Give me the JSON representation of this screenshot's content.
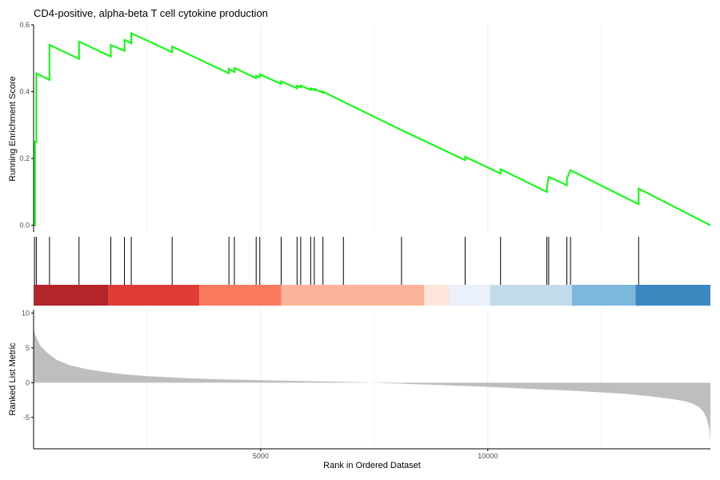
{
  "chart_data": {
    "type": "line",
    "title": "CD4-positive, alpha-beta T cell cytokine production",
    "xlabel": "Rank in Ordered Dataset",
    "xlim": [
      0,
      14900
    ],
    "x_ticks": [
      5000,
      10000
    ],
    "grid": true,
    "colors": {
      "es_line": "#00ff00",
      "hit_line": "#000000",
      "metric_fill": "#bebebe",
      "axis": "#000000",
      "grid": "#ebebeb"
    },
    "panels": {
      "enrichment": {
        "ylabel": "Running Enrichment Score",
        "ylim": [
          -0.02,
          0.6
        ],
        "y_ticks": [
          0.0,
          0.2,
          0.4,
          0.6
        ],
        "y_tick_labels": [
          "0.0",
          "0.2",
          "0.4",
          "0.6"
        ],
        "series": [
          {
            "x": [
              0,
              30,
              30,
              60,
              60,
              350,
              350,
              1000,
              1000,
              1700,
              1700,
              2000,
              2000,
              2150,
              2150,
              3050,
              3050,
              4300,
              4300,
              4420,
              4420,
              4900,
              4900,
              4980,
              4980,
              5450,
              5450,
              5800,
              5800,
              5880,
              5880,
              6100,
              6100,
              6180,
              6180,
              6370,
              6370,
              6820,
              6820,
              8100,
              8100,
              9500,
              9500,
              10280,
              10280,
              11300,
              11300,
              11340,
              11340,
              11740,
              11740,
              11820,
              11820,
              13320,
              13320,
              14900
            ],
            "y": [
              0.0,
              0.0,
              0.25,
              0.25,
              0.455,
              0.435,
              0.54,
              0.498,
              0.55,
              0.505,
              0.54,
              0.522,
              0.555,
              0.545,
              0.575,
              0.518,
              0.535,
              0.455,
              0.468,
              0.459,
              0.471,
              0.44,
              0.448,
              0.443,
              0.452,
              0.423,
              0.431,
              0.41,
              0.418,
              0.413,
              0.418,
              0.405,
              0.41,
              0.405,
              0.408,
              0.397,
              0.4,
              0.37,
              0.37,
              0.285,
              0.285,
              0.195,
              0.205,
              0.155,
              0.168,
              0.1,
              0.112,
              0.145,
              0.145,
              0.12,
              0.14,
              0.165,
              0.165,
              0.063,
              0.11,
              0.0
            ]
          }
        ]
      },
      "hits": {
        "positions": [
          20,
          60,
          350,
          1000,
          1700,
          2000,
          2150,
          3050,
          4300,
          4420,
          4900,
          4980,
          5450,
          5800,
          5880,
          6100,
          6180,
          6370,
          6820,
          8100,
          9500,
          10280,
          11300,
          11340,
          11740,
          11820,
          13320
        ]
      },
      "color_bar": {
        "segments": [
          {
            "from": 0,
            "to": 1650,
            "color": "#b2252b"
          },
          {
            "from": 1650,
            "to": 3650,
            "color": "#e03c36"
          },
          {
            "from": 3650,
            "to": 5450,
            "color": "#fa7a5f"
          },
          {
            "from": 5450,
            "to": 8600,
            "color": "#fdb39b"
          },
          {
            "from": 8600,
            "to": 9150,
            "color": "#fee4da"
          },
          {
            "from": 9150,
            "to": 10050,
            "color": "#eaf1fa"
          },
          {
            "from": 10050,
            "to": 11850,
            "color": "#c2dceb"
          },
          {
            "from": 11850,
            "to": 13250,
            "color": "#7db7dc"
          },
          {
            "from": 13250,
            "to": 14900,
            "color": "#3e88c2"
          }
        ]
      },
      "metric": {
        "ylabel": "Ranked List Metric",
        "ylim": [
          -9.5,
          10.5
        ],
        "y_ticks": [
          -5,
          0,
          5,
          10
        ],
        "y_tick_labels": [
          "-5",
          "0",
          "5",
          "10"
        ],
        "series": [
          {
            "x": [
              0,
              20,
              60,
              150,
              300,
              500,
              800,
              1200,
              1600,
              2000,
              2500,
              3000,
              3500,
              4000,
              5000,
              6000,
              7000,
              7400,
              7600,
              8000,
              9000,
              10000,
              11000,
              12000,
              13000,
              13500,
              14000,
              14300,
              14500,
              14650,
              14750,
              14820,
              14880,
              14900
            ],
            "y": [
              8.0,
              7.2,
              6.5,
              5.3,
              4.3,
              3.3,
              2.5,
              1.9,
              1.5,
              1.2,
              0.95,
              0.78,
              0.62,
              0.5,
              0.35,
              0.22,
              0.1,
              0.02,
              -0.04,
              -0.12,
              -0.35,
              -0.6,
              -0.9,
              -1.2,
              -1.6,
              -1.9,
              -2.3,
              -2.6,
              -3.0,
              -3.5,
              -4.2,
              -5.2,
              -6.8,
              -8.7
            ]
          }
        ]
      }
    }
  }
}
